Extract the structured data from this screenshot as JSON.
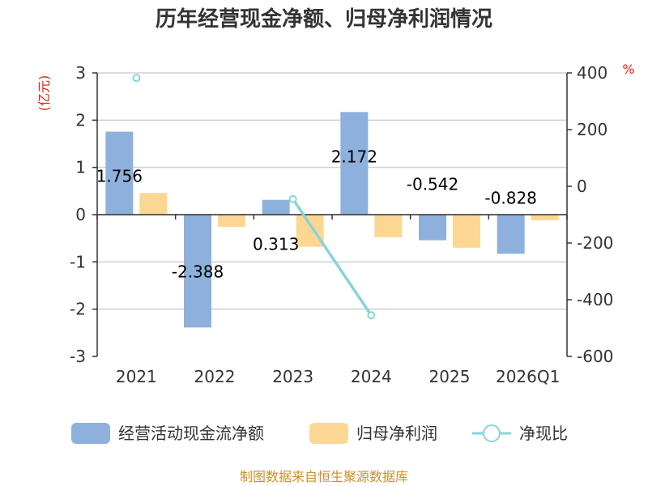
{
  "chart_data": {
    "type": "bar",
    "title": "历年经营现金净额、归母净利润情况",
    "categories": [
      "2021",
      "2022",
      "2023",
      "2024",
      "2025",
      "2026Q1"
    ],
    "left_axis": {
      "unit": "(亿元)",
      "ylim": [
        -3,
        3
      ],
      "ticks": [
        3,
        2,
        1,
        0,
        -1,
        -2,
        -3
      ]
    },
    "right_axis": {
      "unit": "%",
      "ylim": [
        -600,
        400
      ],
      "ticks": [
        400,
        200,
        0,
        -200,
        -400,
        -600
      ]
    },
    "series": [
      {
        "name": "经营活动现金流净额",
        "kind": "bar",
        "axis": "left",
        "color": "#8eb0dc",
        "values": [
          1.756,
          -2.388,
          0.313,
          2.172,
          -0.542,
          -0.828
        ],
        "labels": [
          "1.756",
          "-2.388",
          "0.313",
          "2.172",
          "-0.542",
          "-0.828"
        ]
      },
      {
        "name": "归母净利润",
        "kind": "bar",
        "axis": "left",
        "color": "#fcd793",
        "values": [
          0.46,
          -0.26,
          -0.68,
          -0.48,
          -0.7,
          -0.12
        ]
      },
      {
        "name": "净现比",
        "kind": "line",
        "axis": "right",
        "color": "#88d4d8",
        "values": [
          382,
          null,
          -45,
          -455,
          null,
          null
        ]
      }
    ],
    "grid": true,
    "legend_position": "bottom"
  },
  "source": "制图数据来自恒生聚源数据库"
}
